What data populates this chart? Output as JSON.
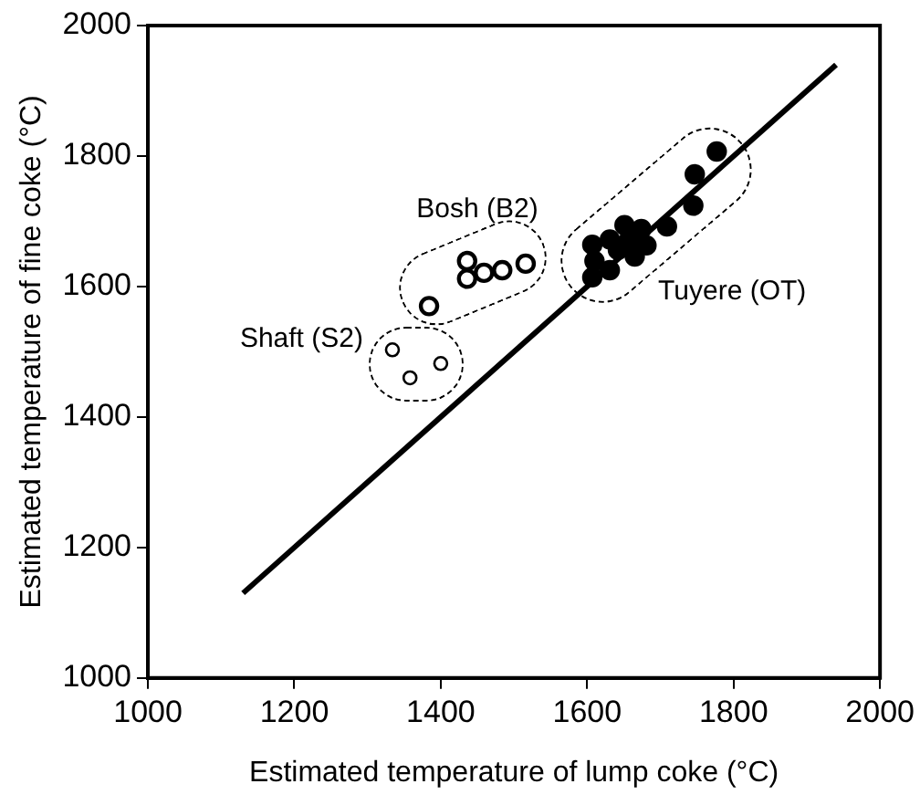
{
  "chart_data": {
    "type": "scatter",
    "xlabel": "Estimated temperature of lump coke (°C)",
    "ylabel": "Estimated temperature of fine coke (°C)",
    "xlim": [
      1000,
      2000
    ],
    "xticks": [
      1000,
      1200,
      1400,
      1600,
      1800,
      2000
    ],
    "ylim": [
      1000,
      2000
    ],
    "yticks": [
      1000,
      1200,
      1400,
      1600,
      1800,
      2000
    ],
    "grid": false,
    "legend": false,
    "marker": "circle",
    "series": [
      {
        "type": "line",
        "marker": "none",
        "color": "#000000",
        "x": [
          1130,
          1940
        ],
        "values": [
          1130,
          1940
        ]
      },
      {
        "name": "Shaft (S2)",
        "color": "#000000",
        "x": [
          1334,
          1358,
          1400
        ],
        "values": [
          1503,
          1460,
          1482
        ]
      },
      {
        "name": "Bosh (B2)",
        "color": "#000000",
        "x": [
          1384,
          1436,
          1436,
          1459,
          1484,
          1516
        ],
        "values": [
          1570,
          1639,
          1612,
          1621,
          1625,
          1635
        ]
      },
      {
        "name": "Tuyere (OT)",
        "color": "#000000",
        "x": [
          1607,
          1610,
          1607,
          1631,
          1631,
          1651,
          1642,
          1657,
          1665,
          1674,
          1681,
          1709,
          1745,
          1747,
          1777
        ],
        "values": [
          1664,
          1639,
          1614,
          1672,
          1625,
          1694,
          1656,
          1671,
          1646,
          1688,
          1663,
          1692,
          1724,
          1772,
          1807
        ]
      }
    ]
  }
}
